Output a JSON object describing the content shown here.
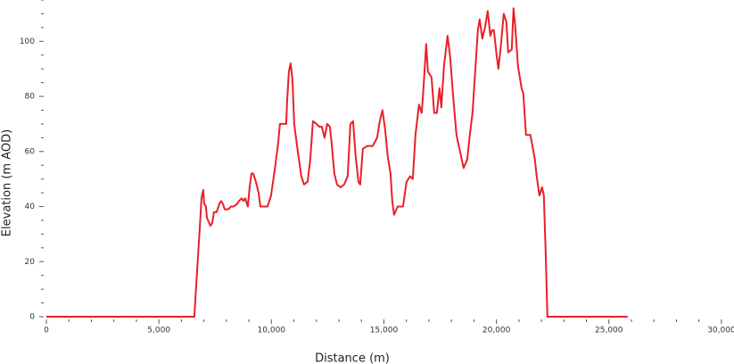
{
  "chart_data": {
    "type": "line",
    "x_label": "Distance (m)",
    "y_label": "Elevation (m AOD)",
    "xlim": [
      0,
      30400
    ],
    "ylim": [
      0,
      115
    ],
    "xticks": [
      0,
      {
        "value": 5000,
        "label": "5,000"
      },
      {
        "value": 10000,
        "label": "10,000"
      },
      {
        "value": 15000,
        "label": "15,000"
      },
      {
        "value": 20000,
        "label": "20,000"
      },
      {
        "value": 25000,
        "label": "25,000"
      },
      {
        "value": 30000,
        "label": "30,000"
      }
    ],
    "xminorticks": [
      1000,
      2000,
      3000,
      4000,
      6000,
      7000,
      8000,
      9000,
      11000,
      12000,
      13000,
      14000,
      16000,
      17000,
      18000,
      19000,
      21000,
      22000,
      23000,
      24000,
      26000,
      27000,
      28000,
      29000
    ],
    "yticks": [
      0,
      20,
      40,
      60,
      80,
      100
    ],
    "yminorticks": [
      5,
      10,
      15,
      25,
      30,
      35,
      45,
      50,
      55,
      65,
      70,
      75,
      85,
      90,
      95,
      105,
      110,
      115
    ],
    "grid": false,
    "series": [
      {
        "color": "#e8202a",
        "x": [
          0,
          6577,
          6656,
          6815,
          6894,
          6973,
          7013,
          7092,
          7132,
          7290,
          7369,
          7448,
          7567,
          7686,
          7765,
          7845,
          7924,
          8082,
          8201,
          8320,
          8479,
          8558,
          8677,
          8756,
          8835,
          8954,
          9033,
          9113,
          9192,
          9311,
          9430,
          9509,
          9826,
          9984,
          10143,
          10301,
          10380,
          10539,
          10658,
          10697,
          10777,
          10856,
          10935,
          11014,
          11173,
          11331,
          11450,
          11609,
          11727,
          11846,
          12005,
          12124,
          12243,
          12361,
          12480,
          12599,
          12678,
          12797,
          12916,
          13074,
          13233,
          13391,
          13510,
          13629,
          13748,
          13867,
          13946,
          14065,
          14263,
          14501,
          14699,
          14818,
          14937,
          15055,
          15174,
          15293,
          15372,
          15452,
          15610,
          15848,
          16006,
          16165,
          16284,
          16402,
          16561,
          16680,
          16759,
          16878,
          16957,
          17116,
          17235,
          17353,
          17472,
          17551,
          17670,
          17829,
          17948,
          18067,
          18225,
          18384,
          18542,
          18700,
          18819,
          18938,
          19057,
          19176,
          19255,
          19374,
          19493,
          19612,
          19731,
          19810,
          19889,
          20008,
          20087,
          20206,
          20325,
          20444,
          20523,
          20681,
          20760,
          20840,
          20958,
          21117,
          21196,
          21315,
          21513,
          21711,
          21791,
          21910,
          22029,
          22108,
          22187,
          22266,
          25832
        ],
        "values": [
          0,
          0,
          11,
          32,
          43,
          46,
          41,
          40,
          36,
          33,
          34,
          38,
          38,
          41,
          42,
          41,
          39,
          39,
          40,
          40,
          41,
          42,
          43,
          42,
          43,
          40,
          47,
          52,
          52,
          49,
          45,
          40,
          40,
          44,
          53,
          63,
          70,
          70,
          70,
          78,
          89,
          92,
          86,
          70,
          60,
          51,
          48,
          49,
          57,
          71,
          70,
          69,
          69,
          65,
          70,
          69,
          63,
          52,
          48,
          47,
          48,
          51,
          70,
          71,
          58,
          49,
          48,
          61,
          62,
          62,
          65,
          71,
          75,
          68,
          58,
          52,
          42,
          37,
          40,
          40,
          49,
          51,
          50,
          66,
          77,
          74,
          83,
          99,
          89,
          87,
          74,
          74,
          83,
          76,
          91,
          102,
          94,
          81,
          66,
          60,
          54,
          57,
          66,
          74,
          89,
          104,
          108,
          101,
          105,
          111,
          102,
          104,
          104,
          95,
          90,
          99,
          110,
          107,
          96,
          97,
          112,
          105,
          91,
          83,
          81,
          66,
          66,
          57,
          51,
          44,
          47,
          44,
          24,
          0,
          0
        ]
      }
    ]
  }
}
